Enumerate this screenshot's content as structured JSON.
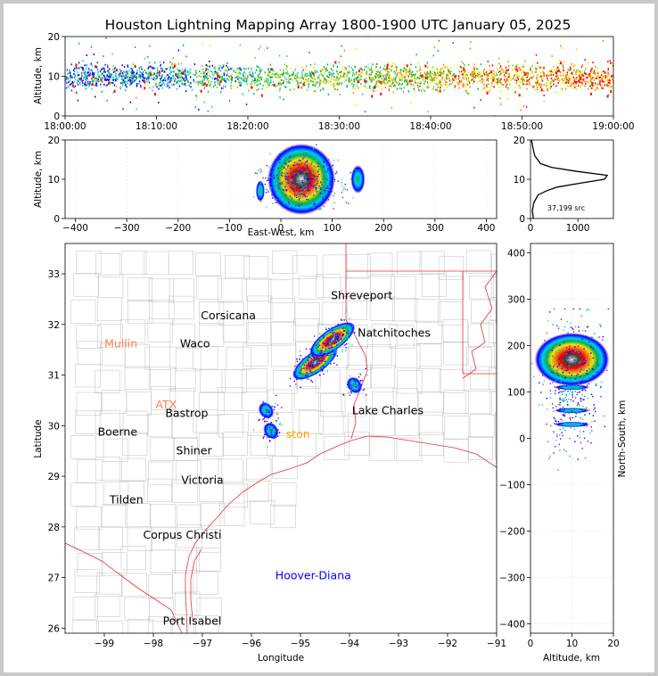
{
  "title": "Houston Lightning Mapping Array 1800-1900 UTC January 05, 2025",
  "time_series": {
    "ylabel": "Altitude, km",
    "ylim": [
      0,
      20
    ],
    "yticks": [
      "0",
      "10",
      "20"
    ],
    "xticks": [
      "18:00:00",
      "18:10:00",
      "18:20:00",
      "18:30:00",
      "18:40:00",
      "18:50:00",
      "19:00:00"
    ]
  },
  "ew_panel": {
    "ylabel": "Altitude, km",
    "xlabel": "East-West, km",
    "xlim": [
      -420,
      420
    ],
    "ylim": [
      0,
      20
    ],
    "xticks": [
      "−400",
      "−300",
      "−200",
      "−100",
      "0",
      "100",
      "200",
      "300",
      "400"
    ],
    "yticks": [
      "0",
      "10",
      "20"
    ]
  },
  "histogram": {
    "xticks": [
      "0",
      "1000"
    ],
    "yticks": [
      "0",
      "10",
      "20"
    ],
    "label": "37,199 src"
  },
  "map": {
    "xlabel": "Longitude",
    "ylabel": "Latitude",
    "xlim": [
      -99.8,
      -91
    ],
    "ylim": [
      25.9,
      33.6
    ],
    "xticks": [
      "−99",
      "−98",
      "−97",
      "−96",
      "−95",
      "−94",
      "−93",
      "−92",
      "−91"
    ],
    "yticks": [
      "26",
      "27",
      "28",
      "29",
      "30",
      "31",
      "32",
      "33"
    ],
    "places": [
      {
        "name": "Shreveport",
        "lon": -93.75,
        "lat": 32.5,
        "color": "#000000"
      },
      {
        "name": "Corsicana",
        "lon": -96.47,
        "lat": 32.1,
        "color": "#000000"
      },
      {
        "name": "Mullin",
        "lon": -98.66,
        "lat": 31.55,
        "color": "#ff7f50"
      },
      {
        "name": "Waco",
        "lon": -97.15,
        "lat": 31.55,
        "color": "#000000"
      },
      {
        "name": "Natchitoches",
        "lon": -93.09,
        "lat": 31.76,
        "color": "#000000"
      },
      {
        "name": "ATX",
        "lon": -97.74,
        "lat": 30.34,
        "color": "#ff7f50"
      },
      {
        "name": "Bastrop",
        "lon": -97.32,
        "lat": 30.17,
        "color": "#000000"
      },
      {
        "name": "Lake Charles",
        "lon": -93.22,
        "lat": 30.23,
        "color": "#000000"
      },
      {
        "name": "Boerne",
        "lon": -98.73,
        "lat": 29.8,
        "color": "#000000"
      },
      {
        "name": "ston",
        "lon": -95.05,
        "lat": 29.76,
        "color": "#ffa500"
      },
      {
        "name": "Shiner",
        "lon": -97.17,
        "lat": 29.43,
        "color": "#000000"
      },
      {
        "name": "Victoria",
        "lon": -97.0,
        "lat": 28.85,
        "color": "#000000"
      },
      {
        "name": "Tilden",
        "lon": -98.55,
        "lat": 28.46,
        "color": "#000000"
      },
      {
        "name": "Corpus Christi",
        "lon": -97.41,
        "lat": 27.77,
        "color": "#000000"
      },
      {
        "name": "Hoover-Diana",
        "lon": -94.74,
        "lat": 26.97,
        "color": "#0000ff"
      },
      {
        "name": "Port Isabel",
        "lon": -97.21,
        "lat": 26.07,
        "color": "#000000"
      }
    ]
  },
  "ns_panel": {
    "ylabel": "North-South, km",
    "xlabel": "Altitude, km",
    "xlim": [
      0,
      20
    ],
    "ylim": [
      -420,
      420
    ],
    "xticks": [
      "0",
      "10",
      "20"
    ],
    "yticks": [
      "−400",
      "−300",
      "−200",
      "−100",
      "0",
      "100",
      "200",
      "300",
      "400"
    ]
  },
  "chart_data": {
    "type": "scatter",
    "title": "Houston Lightning Mapping Array 1800-1900 UTC January 05, 2025",
    "source_count": 37199,
    "xlabel": "Longitude",
    "ylabel": "Latitude",
    "altitude_histogram": {
      "xlabel": "",
      "ylabel": "",
      "altitude_km": [
        0,
        2,
        4,
        6,
        7,
        8,
        9,
        10,
        11,
        12,
        13,
        14,
        16,
        18,
        20
      ],
      "count": [
        60,
        40,
        70,
        160,
        330,
        560,
        1050,
        1560,
        1620,
        980,
        450,
        210,
        90,
        50,
        20
      ]
    },
    "storm_cells": [
      {
        "lon": -94.7,
        "lat": 31.25,
        "alt_km_mean": 10,
        "ew_km": 35,
        "ns_km": 160
      },
      {
        "lon": -94.35,
        "lat": 31.7,
        "alt_km_mean": 10,
        "ew_km": 70,
        "ns_km": 200
      },
      {
        "lon": -95.7,
        "lat": 30.3,
        "alt_km_mean": 9,
        "ew_km": -45,
        "ns_km": 60
      },
      {
        "lon": -95.6,
        "lat": 29.9,
        "alt_km_mean": 9,
        "ew_km": -40,
        "ns_km": 30
      },
      {
        "lon": -93.9,
        "lat": 30.8,
        "alt_km_mean": 9,
        "ew_km": 150,
        "ns_km": 110
      }
    ],
    "time_range": [
      "18:00:00",
      "19:00:00"
    ],
    "colors": [
      "#7b00d4",
      "#0000ff",
      "#00c8ff",
      "#00b050",
      "#7cd000",
      "#ffe000",
      "#ff7f00",
      "#ff0000",
      "#202020",
      "#e0e0e0"
    ]
  }
}
